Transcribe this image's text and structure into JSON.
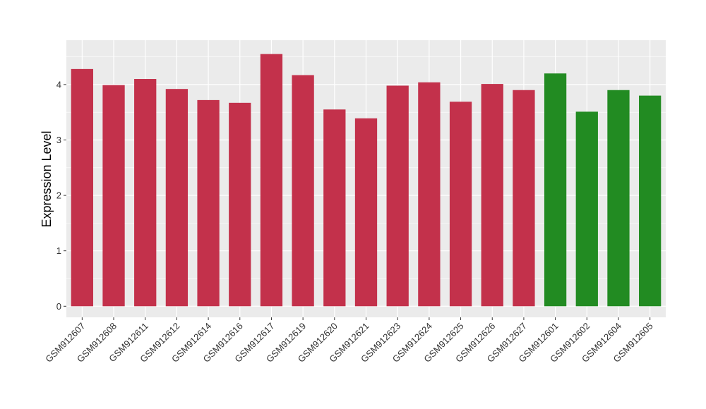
{
  "chart_data": {
    "type": "bar",
    "title": "",
    "xlabel": "",
    "ylabel": "Expression Level",
    "ylim": [
      -0.2,
      4.8
    ],
    "yticks": [
      0,
      1,
      2,
      3,
      4
    ],
    "grid": true,
    "categories": [
      "GSM912607",
      "GSM912608",
      "GSM912611",
      "GSM912612",
      "GSM912614",
      "GSM912616",
      "GSM912617",
      "GSM912619",
      "GSM912620",
      "GSM912621",
      "GSM912623",
      "GSM912624",
      "GSM912625",
      "GSM912626",
      "GSM912627",
      "GSM912601",
      "GSM912602",
      "GSM912604",
      "GSM912605"
    ],
    "values": [
      4.28,
      3.99,
      4.1,
      3.92,
      3.72,
      3.67,
      4.55,
      4.17,
      3.55,
      3.39,
      3.98,
      4.04,
      3.69,
      4.01,
      3.9,
      4.2,
      3.51,
      3.9,
      3.8
    ],
    "bar_colors": [
      "#c3314b",
      "#c3314b",
      "#c3314b",
      "#c3314b",
      "#c3314b",
      "#c3314b",
      "#c3314b",
      "#c3314b",
      "#c3314b",
      "#c3314b",
      "#c3314b",
      "#c3314b",
      "#c3314b",
      "#c3314b",
      "#c3314b",
      "#228b22",
      "#228b22",
      "#228b22",
      "#228b22"
    ],
    "panel_color": "#ebebeb",
    "grid_color": "#ffffff"
  }
}
